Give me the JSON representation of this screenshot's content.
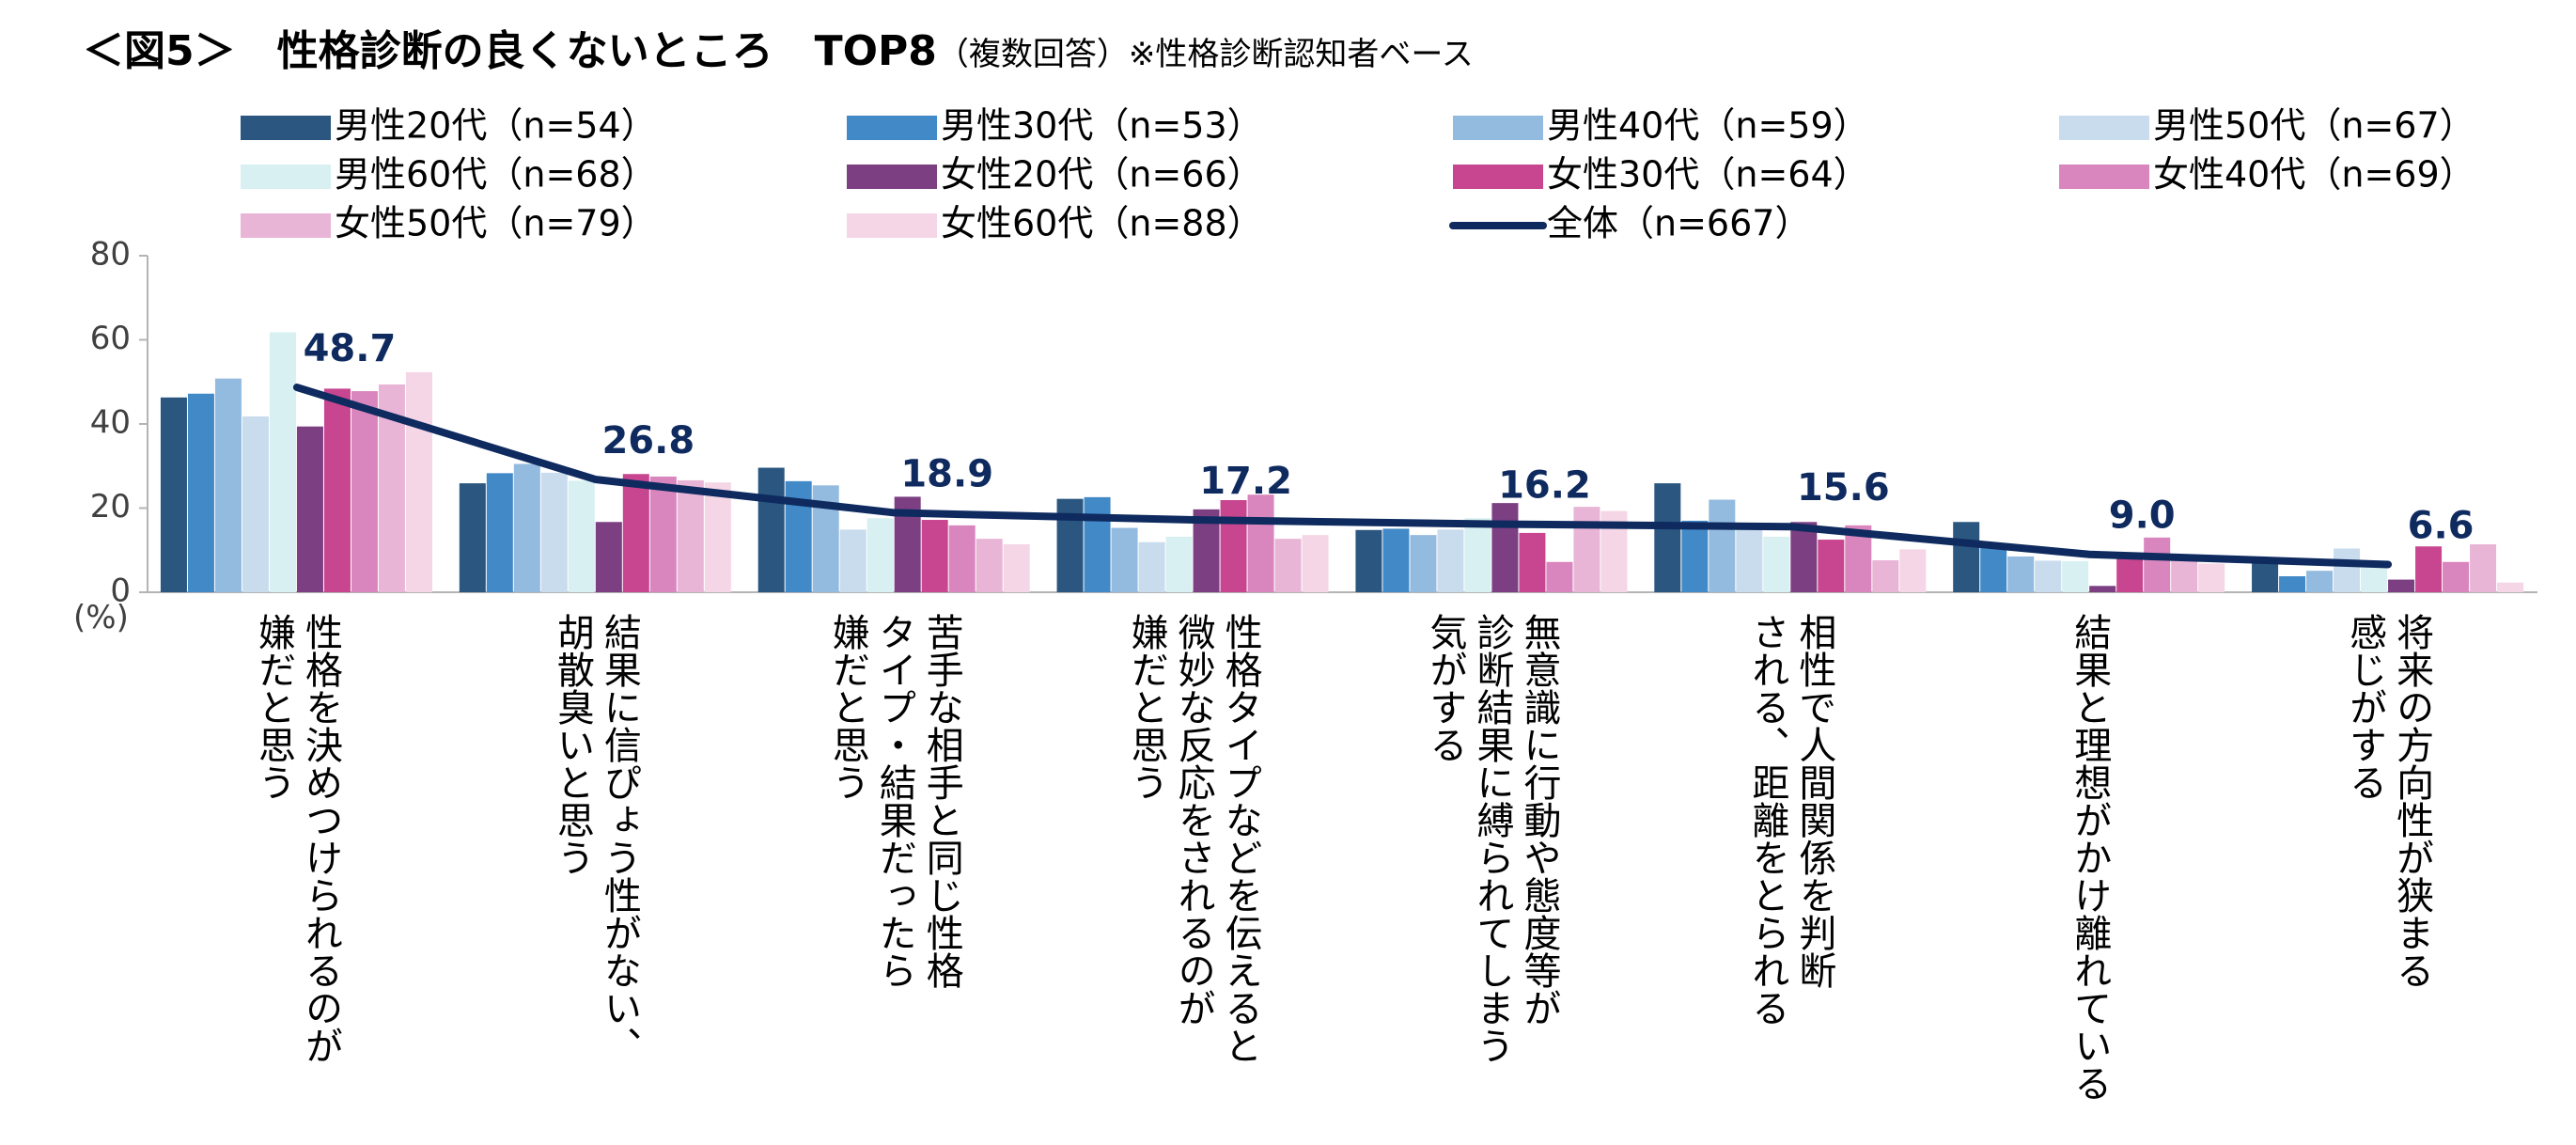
{
  "title": "＜図5＞　性格診断の良くないところ　TOP8",
  "subtitle": "（複数回答）※性格診断認知者ベース",
  "colors": {
    "series": [
      "#2a5680",
      "#4289c8",
      "#93badf",
      "#c8dcee",
      "#d8f0f1",
      "#7b3f82",
      "#c7468f",
      "#d886bd",
      "#e9b5d6",
      "#f4d6e6"
    ],
    "total_line": "#0e2a5f",
    "axis": "#b4b4b4"
  },
  "chart_data": {
    "type": "bar",
    "title": "性格診断の良くないところ　TOP8",
    "ylabel": "(%)",
    "ylim": [
      0,
      80
    ],
    "yticks": [
      "0",
      "20",
      "40",
      "60",
      "80"
    ],
    "grid": false,
    "legend_position": "top",
    "categories": [
      [
        "性格を決めつけられるのが",
        "嫌だと思う"
      ],
      [
        "結果に信ぴょう性がない、",
        "胡散臭いと思う"
      ],
      [
        "苦手な相手と同じ性格",
        "タイプ・結果だったら",
        "嫌だと思う"
      ],
      [
        "性格タイプなどを伝えると",
        "微妙な反応をされるのが",
        "嫌だと思う"
      ],
      [
        "無意識に行動や態度等が",
        "診断結果に縛られてしまう",
        "気がする"
      ],
      [
        "相性で人間関係を判断",
        "される、距離をとられる"
      ],
      [
        "結果と理想がかけ離れている"
      ],
      [
        "将来の方向性が狭まる",
        "感じがする"
      ]
    ],
    "series": [
      {
        "name": "男性20代（n=54）",
        "values": [
          46.3,
          25.9,
          29.6,
          22.2,
          14.8,
          25.9,
          16.7,
          7.4
        ]
      },
      {
        "name": "男性30代（n=53）",
        "values": [
          47.2,
          28.3,
          26.4,
          22.6,
          15.1,
          17.0,
          11.3,
          3.8
        ]
      },
      {
        "name": "男性40代（n=59）",
        "values": [
          50.8,
          30.5,
          25.4,
          15.3,
          13.6,
          22.0,
          8.5,
          5.1
        ]
      },
      {
        "name": "男性50代（n=67）",
        "values": [
          41.8,
          28.4,
          14.9,
          11.9,
          14.9,
          14.9,
          7.5,
          10.4
        ]
      },
      {
        "name": "男性60代（n=68）",
        "values": [
          61.8,
          26.5,
          17.6,
          13.2,
          17.6,
          13.2,
          7.4,
          5.9
        ]
      },
      {
        "name": "女性20代（n=66）",
        "values": [
          39.4,
          16.7,
          22.7,
          19.7,
          21.2,
          16.7,
          1.5,
          3.0
        ]
      },
      {
        "name": "女性30代（n=64）",
        "values": [
          48.4,
          28.1,
          17.2,
          21.9,
          14.1,
          12.5,
          9.4,
          10.9
        ]
      },
      {
        "name": "女性40代（n=69）",
        "values": [
          47.8,
          27.5,
          15.9,
          23.2,
          7.2,
          15.9,
          13.0,
          7.2
        ]
      },
      {
        "name": "女性50代（n=79）",
        "values": [
          49.4,
          26.6,
          12.7,
          12.7,
          20.3,
          7.6,
          7.6,
          11.4
        ]
      },
      {
        "name": "女性60代（n=88）",
        "values": [
          52.3,
          26.1,
          11.4,
          13.6,
          19.3,
          10.2,
          6.8,
          2.3
        ]
      }
    ],
    "total": {
      "name": "全体（n=667）",
      "type": "line",
      "values": [
        48.7,
        26.8,
        18.9,
        17.2,
        16.2,
        15.6,
        9.0,
        6.6
      ],
      "labels": [
        "48.7",
        "26.8",
        "18.9",
        "17.2",
        "16.2",
        "15.6",
        "9.0",
        "6.6"
      ]
    }
  }
}
